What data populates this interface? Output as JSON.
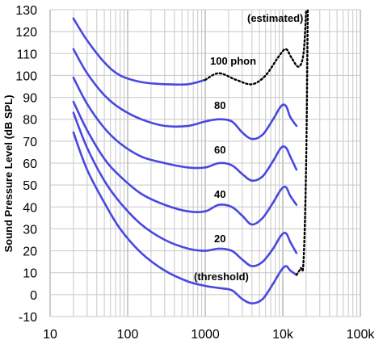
{
  "chart_data": {
    "type": "line",
    "xscale": "log",
    "xlim": [
      10,
      100000
    ],
    "ylim": [
      -10,
      130
    ],
    "xticks": [
      "10",
      "100",
      "1000",
      "10k",
      "100k"
    ],
    "xtick_values": [
      10,
      100,
      1000,
      10000,
      100000
    ],
    "yticks": [
      -10,
      0,
      10,
      20,
      30,
      40,
      50,
      60,
      70,
      80,
      90,
      100,
      110,
      120,
      130
    ],
    "ylabel": "Sound Pressure Level (dB SPL)",
    "xlabel": "",
    "grid": true,
    "series": [
      {
        "name": "100 phon",
        "points": [
          [
            20,
            126
          ],
          [
            30,
            116
          ],
          [
            50,
            106
          ],
          [
            80,
            100
          ],
          [
            150,
            97
          ],
          [
            300,
            96
          ],
          [
            600,
            96
          ],
          [
            1000,
            98
          ]
        ],
        "estimated_points": [
          [
            1000,
            98
          ],
          [
            1500,
            101
          ],
          [
            2500,
            98
          ],
          [
            4000,
            96
          ],
          [
            6000,
            100
          ],
          [
            9000,
            109
          ],
          [
            11000,
            112
          ],
          [
            13000,
            108
          ],
          [
            16000,
            104
          ],
          [
            18500,
            110
          ],
          [
            20000,
            130
          ]
        ]
      },
      {
        "name": "80",
        "points": [
          [
            20,
            112
          ],
          [
            30,
            101
          ],
          [
            50,
            91
          ],
          [
            80,
            85
          ],
          [
            150,
            80
          ],
          [
            300,
            77
          ],
          [
            600,
            77
          ],
          [
            1000,
            79
          ],
          [
            1500,
            80
          ],
          [
            2200,
            79
          ],
          [
            3000,
            74
          ],
          [
            4000,
            71
          ],
          [
            5500,
            73
          ],
          [
            7500,
            80
          ],
          [
            9500,
            86
          ],
          [
            11000,
            86
          ],
          [
            12500,
            81
          ],
          [
            15000,
            77
          ]
        ]
      },
      {
        "name": "60",
        "points": [
          [
            20,
            99
          ],
          [
            30,
            87
          ],
          [
            50,
            76
          ],
          [
            80,
            69
          ],
          [
            150,
            63
          ],
          [
            300,
            60
          ],
          [
            600,
            58
          ],
          [
            1000,
            58
          ],
          [
            1500,
            60
          ],
          [
            2200,
            59
          ],
          [
            3000,
            55
          ],
          [
            4000,
            52
          ],
          [
            5500,
            54
          ],
          [
            7500,
            61
          ],
          [
            9500,
            67
          ],
          [
            11000,
            67
          ],
          [
            12500,
            63
          ],
          [
            15000,
            57
          ]
        ]
      },
      {
        "name": "40",
        "points": [
          [
            20,
            88
          ],
          [
            30,
            75
          ],
          [
            50,
            62
          ],
          [
            80,
            54
          ],
          [
            150,
            46
          ],
          [
            300,
            41
          ],
          [
            600,
            38
          ],
          [
            1000,
            38
          ],
          [
            1500,
            41
          ],
          [
            2200,
            40
          ],
          [
            3000,
            36
          ],
          [
            4000,
            32
          ],
          [
            5500,
            35
          ],
          [
            7500,
            42
          ],
          [
            9500,
            48
          ],
          [
            11000,
            49
          ],
          [
            12500,
            45
          ],
          [
            15000,
            41
          ]
        ]
      },
      {
        "name": "20",
        "points": [
          [
            20,
            83
          ],
          [
            30,
            67
          ],
          [
            50,
            52
          ],
          [
            80,
            42
          ],
          [
            150,
            32
          ],
          [
            300,
            25
          ],
          [
            600,
            21
          ],
          [
            1000,
            20
          ],
          [
            1500,
            21
          ],
          [
            2200,
            20
          ],
          [
            3000,
            16
          ],
          [
            4000,
            13
          ],
          [
            5500,
            15
          ],
          [
            7500,
            21
          ],
          [
            9500,
            27
          ],
          [
            11000,
            28
          ],
          [
            12500,
            24
          ],
          [
            15000,
            19
          ]
        ]
      },
      {
        "name": "(threshold)",
        "points": [
          [
            20,
            74
          ],
          [
            30,
            57
          ],
          [
            50,
            42
          ],
          [
            80,
            30
          ],
          [
            150,
            19
          ],
          [
            300,
            11
          ],
          [
            600,
            6
          ],
          [
            1000,
            4
          ],
          [
            1500,
            3
          ],
          [
            2200,
            2
          ],
          [
            3000,
            -2
          ],
          [
            4000,
            -4
          ],
          [
            5500,
            -2
          ],
          [
            7500,
            5
          ],
          [
            9500,
            11
          ],
          [
            11000,
            13
          ],
          [
            12500,
            11
          ],
          [
            15000,
            9
          ]
        ]
      }
    ],
    "dotted_tail": [
      [
        15000,
        9
      ],
      [
        17000,
        12
      ],
      [
        18500,
        15
      ],
      [
        20000,
        60
      ],
      [
        21000,
        130
      ]
    ],
    "annotations": {
      "estimated": "(estimated)",
      "phon100": "100 phon",
      "phon80": "80",
      "phon60": "60",
      "phon40": "40",
      "phon20": "20",
      "threshold": "(threshold)"
    },
    "colors": {
      "curve": "#4848e0",
      "estimated": "#000000",
      "grid": "#c8c8c8"
    }
  }
}
